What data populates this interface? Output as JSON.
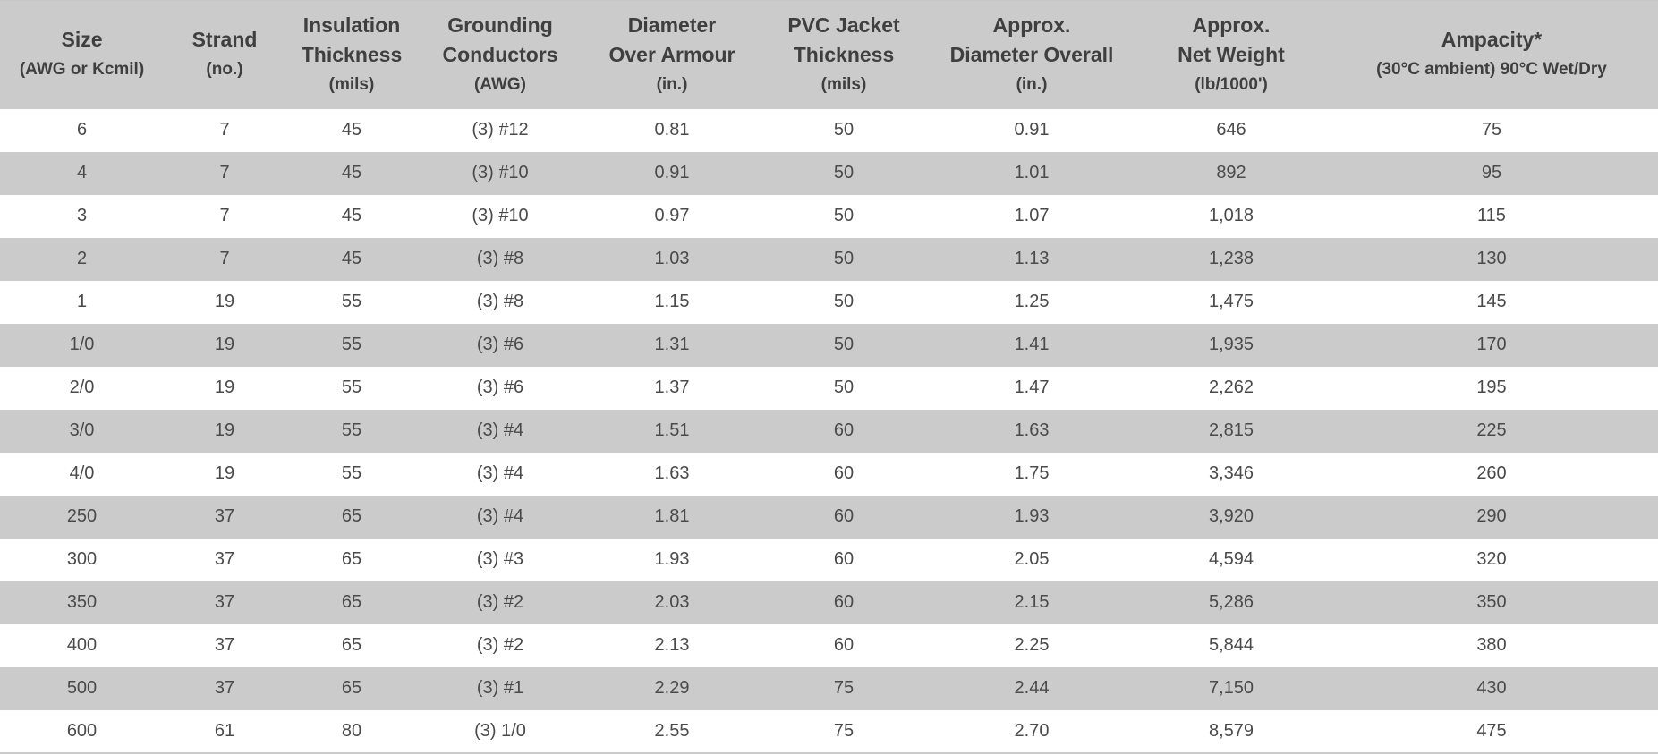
{
  "table": {
    "headers": [
      {
        "lines": [
          "Size"
        ],
        "unit": "(AWG or Kcmil)"
      },
      {
        "lines": [
          "Strand"
        ],
        "unit": "(no.)"
      },
      {
        "lines": [
          "Insulation",
          "Thickness"
        ],
        "unit": "(mils)"
      },
      {
        "lines": [
          "Grounding",
          "Conductors"
        ],
        "unit": "(AWG)"
      },
      {
        "lines": [
          "Diameter",
          "Over Armour"
        ],
        "unit": "(in.)"
      },
      {
        "lines": [
          "PVC Jacket",
          "Thickness"
        ],
        "unit": "(mils)"
      },
      {
        "lines": [
          "Approx.",
          "Diameter Overall"
        ],
        "unit": "(in.)"
      },
      {
        "lines": [
          "Approx.",
          "Net Weight"
        ],
        "unit": "(lb/1000')"
      },
      {
        "lines": [
          "Ampacity*"
        ],
        "unit": "(30°C ambient) 90°C Wet/Dry"
      }
    ],
    "rows": [
      [
        "6",
        "7",
        "45",
        "(3) #12",
        "0.81",
        "50",
        "0.91",
        "646",
        "75"
      ],
      [
        "4",
        "7",
        "45",
        "(3) #10",
        "0.91",
        "50",
        "1.01",
        "892",
        "95"
      ],
      [
        "3",
        "7",
        "45",
        "(3) #10",
        "0.97",
        "50",
        "1.07",
        "1,018",
        "115"
      ],
      [
        "2",
        "7",
        "45",
        "(3) #8",
        "1.03",
        "50",
        "1.13",
        "1,238",
        "130"
      ],
      [
        "1",
        "19",
        "55",
        "(3) #8",
        "1.15",
        "50",
        "1.25",
        "1,475",
        "145"
      ],
      [
        "1/0",
        "19",
        "55",
        "(3) #6",
        "1.31",
        "50",
        "1.41",
        "1,935",
        "170"
      ],
      [
        "2/0",
        "19",
        "55",
        "(3) #6",
        "1.37",
        "50",
        "1.47",
        "2,262",
        "195"
      ],
      [
        "3/0",
        "19",
        "55",
        "(3) #4",
        "1.51",
        "60",
        "1.63",
        "2,815",
        "225"
      ],
      [
        "4/0",
        "19",
        "55",
        "(3) #4",
        "1.63",
        "60",
        "1.75",
        "3,346",
        "260"
      ],
      [
        "250",
        "37",
        "65",
        "(3) #4",
        "1.81",
        "60",
        "1.93",
        "3,920",
        "290"
      ],
      [
        "300",
        "37",
        "65",
        "(3) #3",
        "1.93",
        "60",
        "2.05",
        "4,594",
        "320"
      ],
      [
        "350",
        "37",
        "65",
        "(3) #2",
        "2.03",
        "60",
        "2.15",
        "5,286",
        "350"
      ],
      [
        "400",
        "37",
        "65",
        "(3) #2",
        "2.13",
        "60",
        "2.25",
        "5,844",
        "380"
      ],
      [
        "500",
        "37",
        "65",
        "(3) #1",
        "2.29",
        "75",
        "2.44",
        "7,150",
        "430"
      ],
      [
        "600",
        "61",
        "80",
        "(3) 1/0",
        "2.55",
        "75",
        "2.70",
        "8,579",
        "475"
      ]
    ]
  }
}
